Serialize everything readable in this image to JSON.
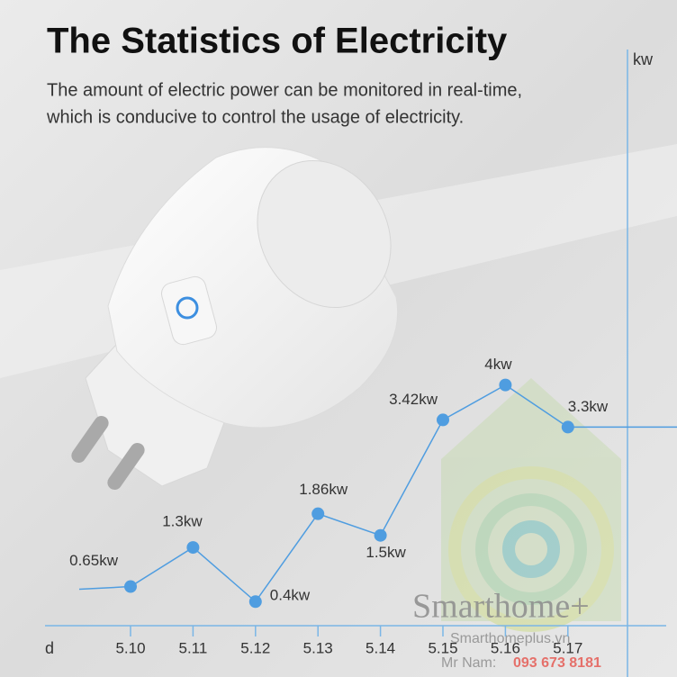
{
  "chart_data": {
    "type": "line",
    "title": "The Statistics of Electricity",
    "subtitle": [
      "The amount of electric power can be monitored in real-time,",
      "which is conducive to control the usage of electricity."
    ],
    "y_label": "kw",
    "x_label": "d",
    "categories": [
      "5.10",
      "5.11",
      "5.12",
      "5.13",
      "5.14",
      "5.15",
      "5.16",
      "5.17"
    ],
    "values": [
      0.65,
      1.3,
      0.4,
      1.86,
      1.5,
      3.42,
      4,
      3.3
    ],
    "value_labels": [
      "0.65kw",
      "1.3kw",
      "0.4kw",
      "1.86kw",
      "1.5kw",
      "3.42kw",
      "4kw",
      "3.3kw"
    ],
    "color": "#4f9de0",
    "ylim": [
      0,
      9.5
    ]
  },
  "watermark": {
    "brand": "Smarthome+",
    "site": "Smarthomeplus.vn",
    "contact_label": "Mr Nam:",
    "phone": "093 673 8181"
  }
}
